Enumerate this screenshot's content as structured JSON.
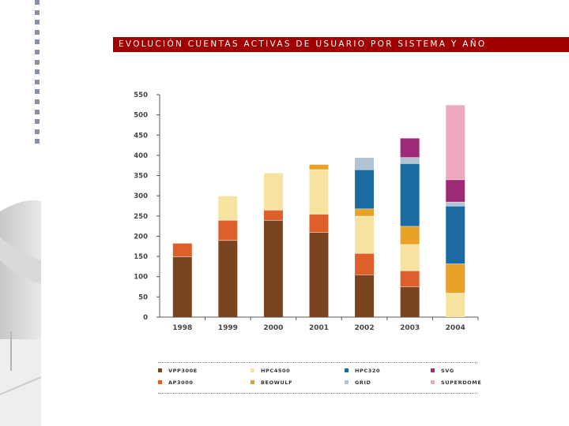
{
  "title": "EVOLUCIÓN CUENTAS ACTIVAS DE USUARIO POR SISTEMA Y AÑO",
  "chart_data": {
    "type": "bar",
    "stacked": true,
    "categories": [
      "1998",
      "1999",
      "2000",
      "2001",
      "2002",
      "2003",
      "2004"
    ],
    "ylim": [
      0,
      550
    ],
    "yticks": [
      0,
      50,
      100,
      150,
      200,
      250,
      300,
      350,
      400,
      450,
      500,
      550
    ],
    "grid": false,
    "legend_position": "bottom",
    "series": [
      {
        "name": "VPP300E",
        "color": "#7a4420",
        "values": [
          150,
          190,
          240,
          210,
          105,
          75,
          0
        ]
      },
      {
        "name": "AP3000",
        "color": "#dd5f2a",
        "values": [
          33,
          50,
          25,
          45,
          53,
          40,
          0
        ]
      },
      {
        "name": "HPC4500",
        "color": "#f6e3a0",
        "values": [
          0,
          60,
          92,
          110,
          92,
          65,
          60
        ]
      },
      {
        "name": "BEOWULF",
        "color": "#e9a228",
        "values": [
          0,
          0,
          0,
          13,
          18,
          45,
          72
        ]
      },
      {
        "name": "HPC320",
        "color": "#1b6aa2",
        "values": [
          0,
          0,
          0,
          0,
          97,
          155,
          143
        ]
      },
      {
        "name": "GRID",
        "color": "#b2c3d3",
        "values": [
          0,
          0,
          0,
          0,
          30,
          15,
          10
        ]
      },
      {
        "name": "SVG",
        "color": "#9c2a78",
        "values": [
          0,
          0,
          0,
          0,
          0,
          48,
          55
        ]
      },
      {
        "name": "SUPERDOME",
        "color": "#eda9bf",
        "values": [
          0,
          0,
          0,
          0,
          0,
          0,
          185
        ]
      }
    ]
  }
}
